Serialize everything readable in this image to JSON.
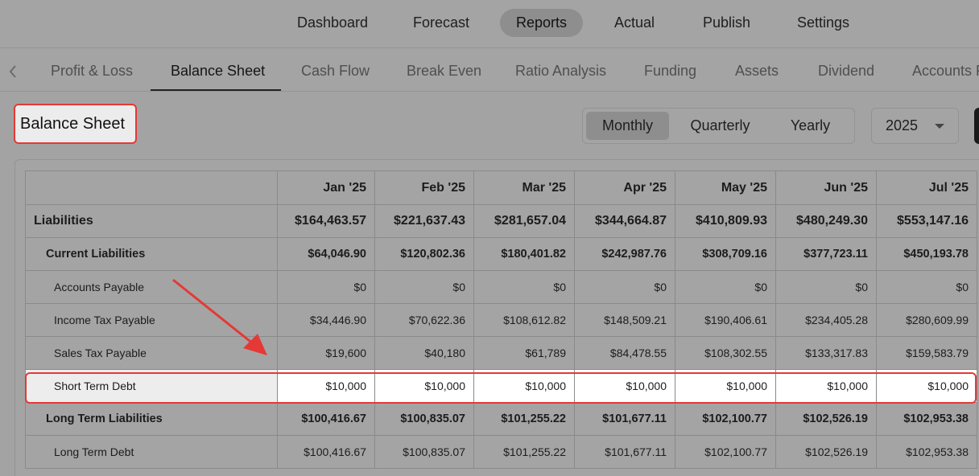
{
  "top_nav": {
    "items": [
      "Dashboard",
      "Forecast",
      "Reports",
      "Actual",
      "Publish",
      "Settings"
    ],
    "active": "Reports"
  },
  "sub_nav": {
    "tabs": [
      "Profit & Loss",
      "Balance Sheet",
      "Cash Flow",
      "Break Even",
      "Ratio Analysis",
      "Funding",
      "Assets",
      "Dividend",
      "Accounts P"
    ],
    "active": "Balance Sheet",
    "scroll_left_icon": "chevron-left-icon"
  },
  "page": {
    "title": "Balance Sheet",
    "period_options": [
      "Monthly",
      "Quarterly",
      "Yearly"
    ],
    "period_selected": "Monthly",
    "year": "2025",
    "year_caret_icon": "caret-down-icon"
  },
  "table": {
    "columns": [
      "Jan '25",
      "Feb '25",
      "Mar '25",
      "Apr '25",
      "May '25",
      "Jun '25",
      "Jul '25"
    ],
    "rows": [
      {
        "label": "Liabilities",
        "values": [
          "$164,463.57",
          "$221,637.43",
          "$281,657.04",
          "$344,664.87",
          "$410,809.93",
          "$480,249.30",
          "$553,147.16"
        ]
      },
      {
        "label": "Current Liabilities",
        "values": [
          "$64,046.90",
          "$120,802.36",
          "$180,401.82",
          "$242,987.76",
          "$308,709.16",
          "$377,723.11",
          "$450,193.78"
        ]
      },
      {
        "label": "Accounts Payable",
        "values": [
          "$0",
          "$0",
          "$0",
          "$0",
          "$0",
          "$0",
          "$0"
        ]
      },
      {
        "label": "Income Tax Payable",
        "values": [
          "$34,446.90",
          "$70,622.36",
          "$108,612.82",
          "$148,509.21",
          "$190,406.61",
          "$234,405.28",
          "$280,609.99"
        ]
      },
      {
        "label": "Sales Tax Payable",
        "values": [
          "$19,600",
          "$40,180",
          "$61,789",
          "$84,478.55",
          "$108,302.55",
          "$133,317.83",
          "$159,583.79"
        ]
      },
      {
        "label": "Short Term Debt",
        "values": [
          "$10,000",
          "$10,000",
          "$10,000",
          "$10,000",
          "$10,000",
          "$10,000",
          "$10,000"
        ]
      },
      {
        "label": "Long Term Liabilities",
        "values": [
          "$100,416.67",
          "$100,835.07",
          "$101,255.22",
          "$101,677.11",
          "$102,100.77",
          "$102,526.19",
          "$102,953.38"
        ]
      },
      {
        "label": "Long Term Debt",
        "values": [
          "$100,416.67",
          "$100,835.07",
          "$101,255.22",
          "$101,677.11",
          "$102,100.77",
          "$102,526.19",
          "$102,953.38"
        ]
      }
    ],
    "highlighted_row": "Short Term Debt"
  },
  "colors": {
    "highlight_border": "#e53935",
    "arrow": "#e53935",
    "overlay_gray": "#a4a4a4"
  }
}
